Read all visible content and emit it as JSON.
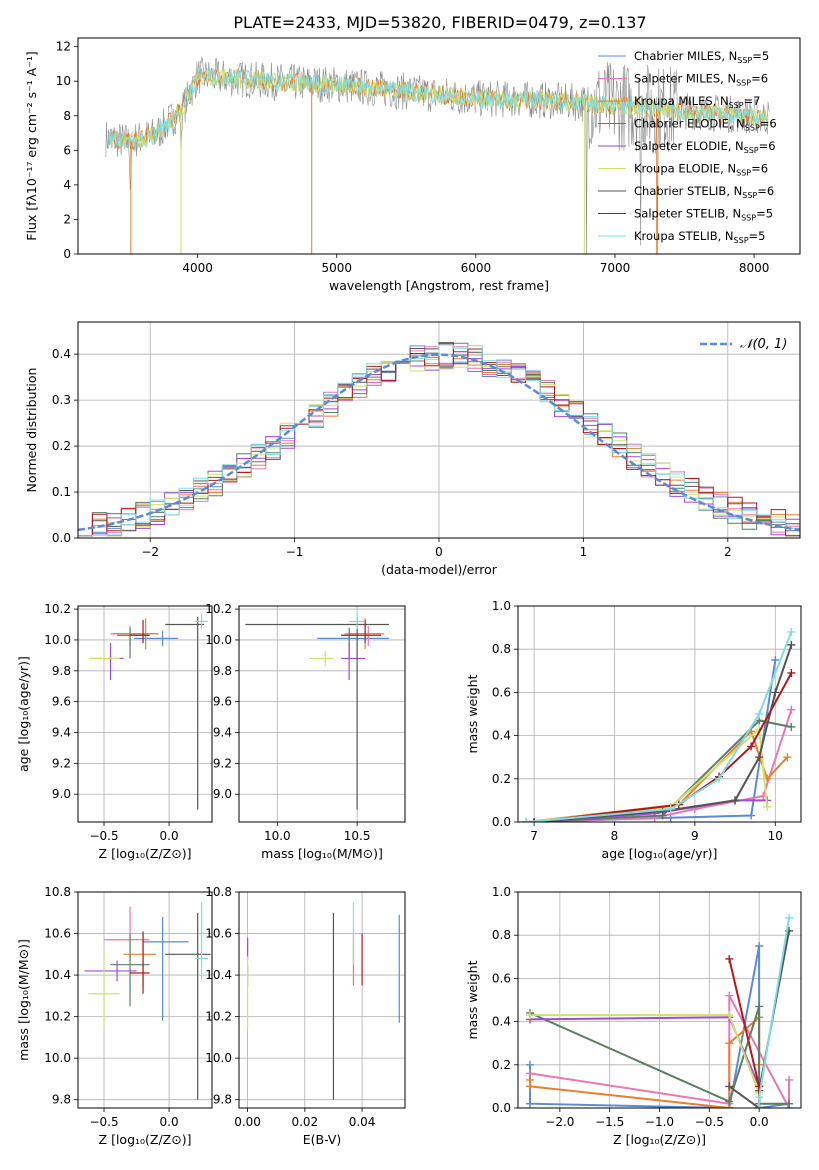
{
  "title": "PLATE=2433, MJD=53820, FIBERID=0479, z=0.137",
  "colors": {
    "series": [
      "#5b8bd6",
      "#e877b8",
      "#e87e2e",
      "#5a7f63",
      "#a04ad9",
      "#d2e06a",
      "#555555",
      "#b01a1a",
      "#7fdde0"
    ],
    "gray": "#888888",
    "grid": "#b0b0b0",
    "normal_curve": "#5b8bd6"
  },
  "legend": [
    {
      "label": "Chabrier MILES, N",
      "sub": "SSP",
      "suffix": "=5"
    },
    {
      "label": "Salpeter MILES, N",
      "sub": "SSP",
      "suffix": "=6"
    },
    {
      "label": "Kroupa MILES, N",
      "sub": "SSP",
      "suffix": "=7"
    },
    {
      "label": "Chabrier ELODIE, N",
      "sub": "SSP",
      "suffix": "=6"
    },
    {
      "label": "Salpeter ELODIE, N",
      "sub": "SSP",
      "suffix": "=6"
    },
    {
      "label": "Kroupa ELODIE, N",
      "sub": "SSP",
      "suffix": "=6"
    },
    {
      "label": "Chabrier STELIB, N",
      "sub": "SSP",
      "suffix": "=6"
    },
    {
      "label": "Salpeter STELIB, N",
      "sub": "SSP",
      "suffix": "=5"
    },
    {
      "label": "Kroupa STELIB, N",
      "sub": "SSP",
      "suffix": "=5"
    }
  ],
  "chart_data": [
    {
      "id": "spectrum",
      "type": "line",
      "xlabel": "wavelength [Angstrom, rest frame]",
      "ylabel": "Flux [fλ10⁻¹⁷ erg cm⁻² s⁻¹ A⁻¹]",
      "xlim": [
        3140,
        8330
      ],
      "ylim": [
        0,
        12.5
      ],
      "xticks": [
        4000,
        5000,
        6000,
        7000,
        8000
      ],
      "yticks": [
        0,
        2,
        4,
        6,
        8,
        10,
        12
      ],
      "continuum": {
        "x": [
          3360,
          3500,
          3700,
          3900,
          4000,
          4200,
          4500,
          5000,
          5500,
          6000,
          6500,
          7000,
          7500,
          8000,
          8100
        ],
        "y": [
          6.7,
          6.5,
          6.9,
          8.5,
          10.3,
          10.2,
          10.0,
          9.8,
          9.4,
          9.0,
          8.9,
          8.6,
          8.3,
          8.0,
          7.9
        ]
      },
      "legend_position": "upper right"
    },
    {
      "id": "residuals",
      "type": "line",
      "xlabel": "(data-model)/error",
      "ylabel": "Normed distribution",
      "xlim": [
        -2.5,
        2.5
      ],
      "ylim": [
        0,
        0.47
      ],
      "xticks": [
        -2,
        -1,
        0,
        1,
        2
      ],
      "yticks": [
        0.0,
        0.1,
        0.2,
        0.3,
        0.4
      ],
      "bin_width": 0.1,
      "legend": "𝒩(0, 1)",
      "legend_position": "upper right",
      "grid": true
    },
    {
      "id": "age-vs-Z",
      "type": "scatter",
      "xlabel": "Z [log₁₀(Z/Z⊙)]",
      "ylabel": "age  [log₁₀(age/yr)]",
      "xlim": [
        -0.7,
        0.33
      ],
      "ylim": [
        8.82,
        10.22
      ],
      "xticks": [
        -0.5,
        0.0
      ],
      "yticks": [
        9.0,
        9.2,
        9.4,
        9.6,
        9.8,
        10.0,
        10.2
      ],
      "grid": true,
      "points": [
        {
          "x": -0.05,
          "y": 10.01,
          "xerr": [
            0.22,
            0.12
          ],
          "yerr": [
            0.05,
            0.05
          ],
          "color": 0
        },
        {
          "x": -0.3,
          "y": 10.04,
          "xerr": [
            0.15,
            0.2
          ],
          "yerr": [
            0.08,
            0.05
          ],
          "color": 1
        },
        {
          "x": -0.18,
          "y": 10.04,
          "xerr": [
            0.25,
            0.1
          ],
          "yerr": [
            0.1,
            0.1
          ],
          "color": 2
        },
        {
          "x": -0.3,
          "y": 10.03,
          "xerr": [
            0.1,
            0.15
          ],
          "yerr": [
            0.15,
            0.05
          ],
          "color": 3
        },
        {
          "x": -0.45,
          "y": 9.88,
          "xerr": [
            0.15,
            0.1
          ],
          "yerr": [
            0.14,
            0.1
          ],
          "color": 4
        },
        {
          "x": -0.5,
          "y": 9.88,
          "xerr": [
            0.12,
            0.12
          ],
          "yerr": [
            0.05,
            0.05
          ],
          "color": 5
        },
        {
          "x": 0.22,
          "y": 10.1,
          "xerr": [
            0.25,
            0.05
          ],
          "yerr": [
            1.2,
            0.05
          ],
          "color": 6
        },
        {
          "x": -0.2,
          "y": 10.03,
          "xerr": [
            0.1,
            0.05
          ],
          "yerr": [
            0.05,
            0.1
          ],
          "color": 7
        },
        {
          "x": 0.25,
          "y": 10.12,
          "xerr": [
            0.05,
            0.05
          ],
          "yerr": [
            0.05,
            0.05
          ],
          "color": 8
        }
      ]
    },
    {
      "id": "age-vs-mass",
      "type": "scatter",
      "xlabel": "mass [log₁₀(M/M⊙)]",
      "ylabel": "",
      "xlim": [
        9.76,
        10.8
      ],
      "ylim": [
        8.82,
        10.22
      ],
      "xticks": [
        10.0,
        10.5
      ],
      "yticks": [
        9.0,
        9.2,
        9.4,
        9.6,
        9.8,
        10.0,
        10.2
      ],
      "grid": true,
      "points": [
        {
          "x": 10.45,
          "y": 10.01,
          "xerr": [
            0.2,
            0.25
          ],
          "yerr": [
            0.05,
            0.05
          ],
          "color": 0
        },
        {
          "x": 10.57,
          "y": 10.04,
          "xerr": [
            0.15,
            0.1
          ],
          "yerr": [
            0.08,
            0.05
          ],
          "color": 1
        },
        {
          "x": 10.55,
          "y": 10.04,
          "xerr": [
            0.1,
            0.1
          ],
          "yerr": [
            0.1,
            0.1
          ],
          "color": 2
        },
        {
          "x": 10.45,
          "y": 10.03,
          "xerr": [
            0.05,
            0.05
          ],
          "yerr": [
            0.15,
            0.05
          ],
          "color": 3
        },
        {
          "x": 10.45,
          "y": 9.88,
          "xerr": [
            0.05,
            0.1
          ],
          "yerr": [
            0.14,
            0.1
          ],
          "color": 4
        },
        {
          "x": 10.3,
          "y": 9.88,
          "xerr": [
            0.1,
            0.05
          ],
          "yerr": [
            0.05,
            0.05
          ],
          "color": 5
        },
        {
          "x": 10.5,
          "y": 10.1,
          "xerr": [
            0.7,
            0.2
          ],
          "yerr": [
            1.2,
            0.05
          ],
          "color": 6
        },
        {
          "x": 10.55,
          "y": 10.03,
          "xerr": [
            0.15,
            0.1
          ],
          "yerr": [
            0.05,
            0.1
          ],
          "color": 7
        },
        {
          "x": 10.5,
          "y": 10.12,
          "xerr": [
            0.05,
            0.05
          ],
          "yerr": [
            0.05,
            0.05
          ],
          "color": 8
        }
      ]
    },
    {
      "id": "weight-vs-age",
      "type": "line",
      "xlabel": "age  [log₁₀(age/yr)]",
      "ylabel": "mass weight",
      "xlim": [
        6.8,
        10.32
      ],
      "ylim": [
        0,
        1.0
      ],
      "xticks": [
        7,
        8,
        9,
        10
      ],
      "yticks": [
        0.0,
        0.2,
        0.4,
        0.6,
        0.8,
        1.0
      ],
      "grid": true,
      "series": [
        {
          "color": 0,
          "x": [
            7.0,
            8.7,
            9.7,
            10.0
          ],
          "y": [
            0.0,
            0.02,
            0.03,
            0.75
          ]
        },
        {
          "color": 1,
          "x": [
            7.0,
            8.5,
            9.0,
            9.85,
            10.2
          ],
          "y": [
            0.0,
            0.02,
            0.06,
            0.12,
            0.52
          ]
        },
        {
          "color": 2,
          "x": [
            6.9,
            8.8,
            9.7,
            9.9,
            10.15
          ],
          "y": [
            0.0,
            0.08,
            0.42,
            0.2,
            0.3
          ]
        },
        {
          "color": 3,
          "x": [
            7.0,
            8.6,
            9.8,
            10.2
          ],
          "y": [
            0.0,
            0.03,
            0.47,
            0.44
          ]
        },
        {
          "color": 4,
          "x": [
            7.0,
            8.5,
            9.5,
            9.9
          ],
          "y": [
            0.0,
            0.04,
            0.1,
            0.1
          ]
        },
        {
          "color": 5,
          "x": [
            6.9,
            8.7,
            9.8,
            9.9
          ],
          "y": [
            0.0,
            0.07,
            0.43,
            0.07
          ]
        },
        {
          "color": 6,
          "x": [
            7.0,
            8.6,
            9.5,
            9.8,
            10.0,
            10.2
          ],
          "y": [
            0.0,
            0.05,
            0.1,
            0.3,
            0.6,
            0.82
          ]
        },
        {
          "color": 7,
          "x": [
            7.0,
            8.8,
            9.3,
            9.7,
            10.2
          ],
          "y": [
            0.0,
            0.08,
            0.21,
            0.35,
            0.69
          ]
        },
        {
          "color": 8,
          "x": [
            6.9,
            8.7,
            9.3,
            9.8,
            10.2
          ],
          "y": [
            0.0,
            0.06,
            0.2,
            0.5,
            0.88
          ]
        }
      ]
    },
    {
      "id": "mass-vs-Z",
      "type": "scatter",
      "xlabel": "Z [log₁₀(Z/Z⊙)]",
      "ylabel": "mass [log₁₀(M/M⊙)]",
      "xlim": [
        -0.7,
        0.33
      ],
      "ylim": [
        9.76,
        10.8
      ],
      "xticks": [
        -0.5,
        0.0
      ],
      "yticks": [
        9.8,
        10.0,
        10.2,
        10.4,
        10.6,
        10.8
      ],
      "grid": true,
      "points": [
        {
          "x": -0.05,
          "y": 10.56,
          "xerr": [
            0.15,
            0.2
          ],
          "yerr": [
            0.38,
            0.12
          ],
          "color": 0
        },
        {
          "x": -0.3,
          "y": 10.57,
          "xerr": [
            0.2,
            0.15
          ],
          "yerr": [
            0.1,
            0.16
          ],
          "color": 1
        },
        {
          "x": -0.2,
          "y": 10.5,
          "xerr": [
            0.15,
            0.1
          ],
          "yerr": [
            0.15,
            0.1
          ],
          "color": 2
        },
        {
          "x": -0.3,
          "y": 10.45,
          "xerr": [
            0.15,
            0.15
          ],
          "yerr": [
            0.2,
            0.15
          ],
          "color": 3
        },
        {
          "x": -0.4,
          "y": 10.42,
          "xerr": [
            0.25,
            0.15
          ],
          "yerr": [
            0.05,
            0.05
          ],
          "color": 4
        },
        {
          "x": -0.5,
          "y": 10.31,
          "xerr": [
            0.12,
            0.12
          ],
          "yerr": [
            0.16,
            0.2
          ],
          "color": 5
        },
        {
          "x": 0.22,
          "y": 10.5,
          "xerr": [
            0.25,
            0.1
          ],
          "yerr": [
            0.7,
            0.2
          ],
          "color": 6
        },
        {
          "x": -0.2,
          "y": 10.41,
          "xerr": [
            0.1,
            0.05
          ],
          "yerr": [
            0.1,
            0.2
          ],
          "color": 7
        },
        {
          "x": 0.25,
          "y": 10.48,
          "xerr": [
            0.05,
            0.05
          ],
          "yerr": [
            0.1,
            0.27
          ],
          "color": 8
        }
      ]
    },
    {
      "id": "mass-vs-EBV",
      "type": "scatter",
      "xlabel": "E(B-V)",
      "ylabel": "",
      "xlim": [
        -0.003,
        0.055
      ],
      "ylim": [
        9.76,
        10.8
      ],
      "xticks": [
        0.0,
        0.02,
        0.04
      ],
      "yticks": [
        9.8,
        10.0,
        10.2,
        10.4,
        10.6,
        10.8
      ],
      "grid": true,
      "points": [
        {
          "x": 0.053,
          "y": 10.45,
          "yerr": [
            0.28,
            0.24
          ],
          "color": 0
        },
        {
          "x": 0.0,
          "y": 10.55,
          "yerr": [
            0.05,
            0.03
          ],
          "color": 1
        },
        {
          "x": 0.037,
          "y": 10.45,
          "yerr": [
            0.1,
            0.15
          ],
          "color": 2
        },
        {
          "x": 0.0,
          "y": 10.4,
          "yerr": [
            0.05,
            0.05
          ],
          "color": 3
        },
        {
          "x": 0.0,
          "y": 10.52,
          "yerr": [
            0.05,
            0.06
          ],
          "color": 4
        },
        {
          "x": 0.0,
          "y": 10.31,
          "yerr": [
            0.17,
            0.18
          ],
          "color": 5
        },
        {
          "x": 0.03,
          "y": 10.4,
          "yerr": [
            0.6,
            0.3
          ],
          "color": 6
        },
        {
          "x": 0.04,
          "y": 10.45,
          "yerr": [
            0.1,
            0.15
          ],
          "color": 7
        },
        {
          "x": 0.037,
          "y": 10.55,
          "yerr": [
            0.1,
            0.2
          ],
          "color": 8
        }
      ]
    },
    {
      "id": "weight-vs-Z",
      "type": "line",
      "xlabel": "Z [log₁₀(Z/Z⊙)]",
      "ylabel": "mass weight",
      "xlim": [
        -2.42,
        0.42
      ],
      "ylim": [
        0,
        1.0
      ],
      "xticks": [
        -2.0,
        -1.5,
        -1.0,
        -0.5,
        0.0
      ],
      "yticks": [
        0.0,
        0.2,
        0.4,
        0.6,
        0.8,
        1.0
      ],
      "grid": true,
      "series": [
        {
          "color": 0,
          "x": [
            -2.3,
            -2.3,
            -0.3,
            0.0,
            0.0,
            0.3
          ],
          "y": [
            0.2,
            0.02,
            0.0,
            0.75,
            0.0,
            0.02
          ]
        },
        {
          "color": 1,
          "x": [
            -2.3,
            -0.3,
            -0.3,
            0.3,
            0.3
          ],
          "y": [
            0.16,
            0.02,
            0.52,
            0.0,
            0.13
          ]
        },
        {
          "color": 2,
          "x": [
            -2.3,
            -2.3,
            -0.3,
            -0.3,
            0.0,
            0.0
          ],
          "y": [
            0.13,
            0.1,
            0.0,
            0.3,
            0.42,
            0.2
          ]
        },
        {
          "color": 3,
          "x": [
            -2.3,
            -0.3,
            0.0,
            0.0,
            0.3
          ],
          "y": [
            0.44,
            0.03,
            0.47,
            0.02,
            0.02
          ]
        },
        {
          "color": 4,
          "x": [
            -2.3,
            -0.3,
            0.0,
            0.0
          ],
          "y": [
            0.41,
            0.42,
            0.1,
            0.0
          ]
        },
        {
          "color": 5,
          "x": [
            -2.3,
            -0.3,
            0.0,
            0.0
          ],
          "y": [
            0.43,
            0.43,
            0.07,
            0.0
          ]
        },
        {
          "color": 6,
          "x": [
            -0.3,
            0.0,
            0.0,
            0.3
          ],
          "y": [
            0.1,
            0.0,
            0.08,
            0.82
          ]
        },
        {
          "color": 7,
          "x": [
            -0.3,
            0.0,
            0.0
          ],
          "y": [
            0.69,
            0.1,
            0.0
          ]
        },
        {
          "color": 8,
          "x": [
            0.0,
            0.0,
            0.3
          ],
          "y": [
            0.0,
            0.05,
            0.88
          ]
        }
      ]
    }
  ]
}
